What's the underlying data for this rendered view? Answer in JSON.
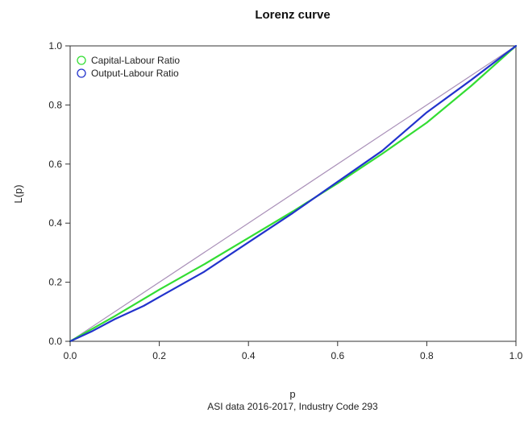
{
  "chart_data": {
    "type": "line",
    "title": "Lorenz curve",
    "xlabel": "p",
    "ylabel": "L(p)",
    "subtitle": "ASI data 2016-2017, Industry Code 293",
    "xlim": [
      0,
      1
    ],
    "ylim": [
      0,
      1
    ],
    "x_ticks": [
      "0.0",
      "0.2",
      "0.4",
      "0.6",
      "0.8",
      "1.0"
    ],
    "y_ticks": [
      "0.0",
      "0.2",
      "0.4",
      "0.6",
      "0.8",
      "1.0"
    ],
    "grid": false,
    "legend_position": "top-left",
    "equality_line": {
      "x": [
        0,
        1
      ],
      "y": [
        0,
        1
      ],
      "color": "#a98fb8"
    },
    "series": [
      {
        "name": "Capital-Labour Ratio",
        "color": "#33dd33",
        "x": [
          0,
          0.1,
          0.2,
          0.3,
          0.4,
          0.5,
          0.6,
          0.7,
          0.8,
          0.9,
          1.0
        ],
        "y": [
          0,
          0.085,
          0.175,
          0.26,
          0.35,
          0.44,
          0.535,
          0.635,
          0.74,
          0.865,
          1.0
        ]
      },
      {
        "name": "Output-Labour Ratio",
        "color": "#2233cc",
        "x": [
          0,
          0.05,
          0.1,
          0.165,
          0.2,
          0.3,
          0.4,
          0.5,
          0.6,
          0.7,
          0.8,
          0.9,
          1.0
        ],
        "y": [
          0,
          0.035,
          0.075,
          0.12,
          0.15,
          0.235,
          0.335,
          0.435,
          0.54,
          0.645,
          0.775,
          0.885,
          1.0
        ]
      }
    ]
  }
}
